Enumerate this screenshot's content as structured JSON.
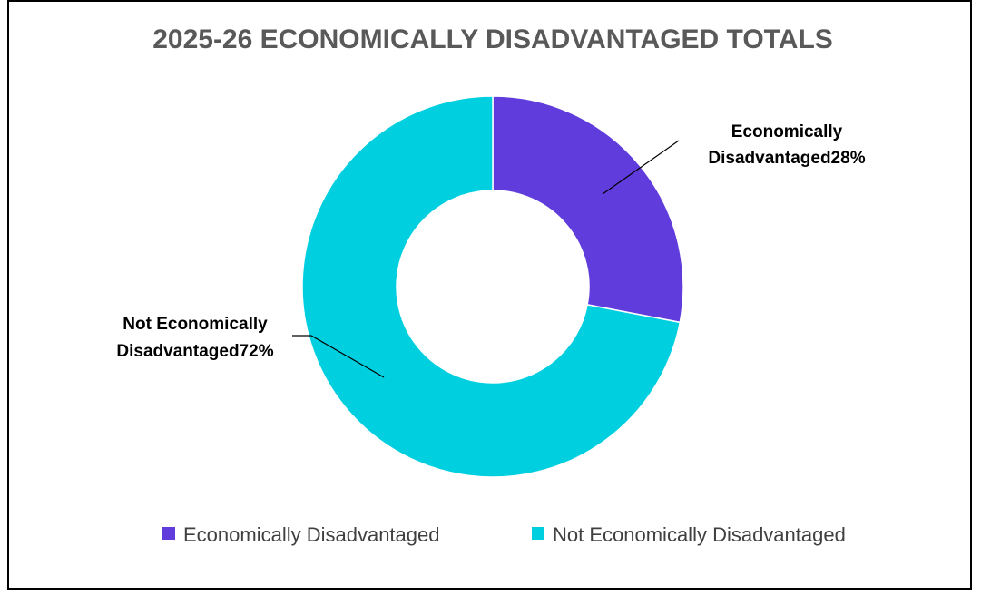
{
  "chart_data": {
    "type": "pie",
    "variant": "donut",
    "title": "2025-26 ECONOMICALLY DISADVANTAGED TOTALS",
    "categories": [
      "Economically Disadvantaged",
      "Not Economically Disadvantaged"
    ],
    "values": [
      28,
      72
    ],
    "unit": "%",
    "data_labels": [
      {
        "line1": "Economically",
        "line2": "Disadvantaged28%"
      },
      {
        "line1": "Not Economically",
        "line2": "Disadvantaged72%"
      }
    ],
    "legend": {
      "position": "bottom",
      "entries": [
        "Economically Disadvantaged",
        "Not Economically Disadvantaged"
      ]
    },
    "colors": [
      "#5f3cdb",
      "#00cfe0"
    ]
  }
}
